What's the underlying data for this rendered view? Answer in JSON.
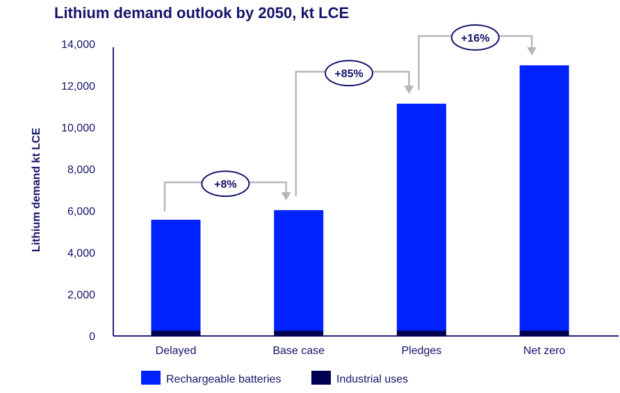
{
  "chart_data": {
    "type": "bar",
    "stacked": true,
    "title": "Lithium demand outlook by 2050, kt LCE",
    "xlabel": "",
    "ylabel": "Lithium demand kt LCE",
    "ylim": [
      0,
      14000
    ],
    "yticks": [
      0,
      2000,
      4000,
      6000,
      8000,
      10000,
      12000,
      14000
    ],
    "ytick_labels": [
      "0",
      "2,000",
      "4,000",
      "6,000",
      "8,000",
      "10,000",
      "12,000",
      "14,000"
    ],
    "categories": [
      "Delayed",
      "Base case",
      "Pledges",
      "Net zero"
    ],
    "series": [
      {
        "name": "Industrial uses",
        "color": "#000050",
        "values": [
          250,
          250,
          250,
          250
        ]
      },
      {
        "name": "Rechargeable batteries",
        "color": "#0022ff",
        "values": [
          5320,
          5780,
          10880,
          12720
        ]
      }
    ],
    "legend_order": [
      "Rechargeable batteries",
      "Industrial uses"
    ],
    "legend_placement": "bottom",
    "grid": false,
    "annotations": [
      {
        "from": "Delayed",
        "to": "Base case",
        "label": "+8%"
      },
      {
        "from": "Base case",
        "to": "Pledges",
        "label": "+85%"
      },
      {
        "from": "Pledges",
        "to": "Net zero",
        "label": "+16%"
      }
    ],
    "colors": {
      "text": "#14146b",
      "arrow": "#b8b8b8"
    }
  }
}
